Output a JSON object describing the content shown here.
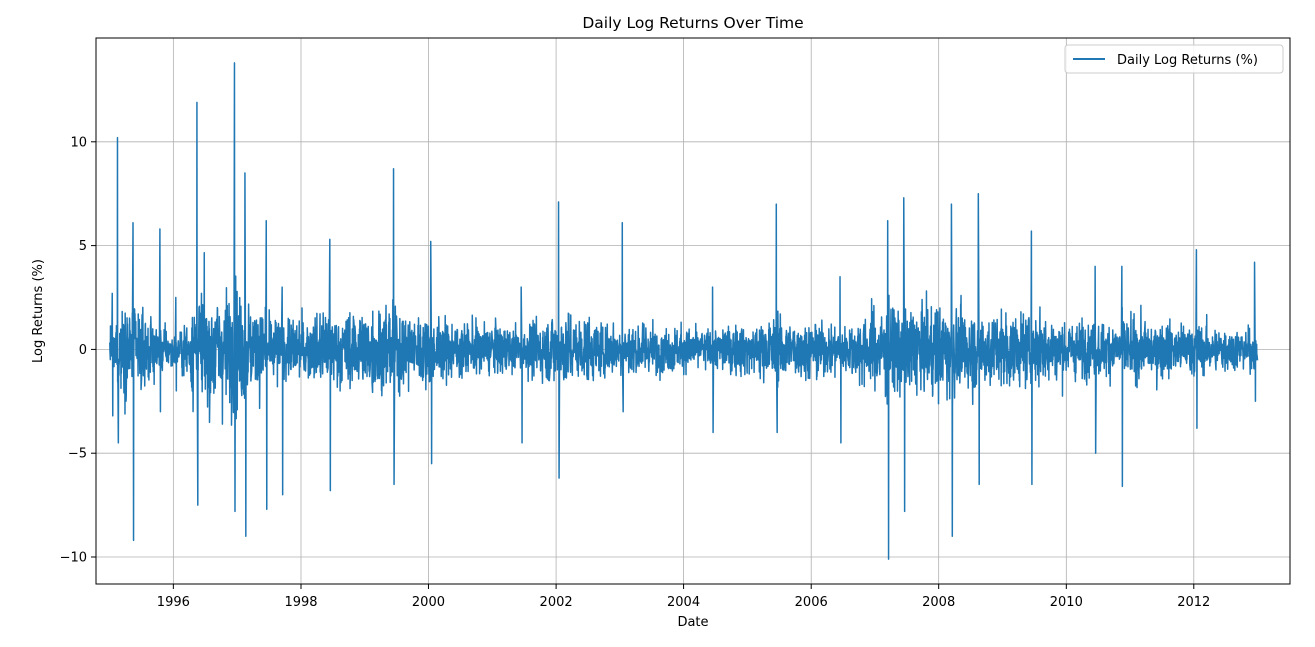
{
  "chart_data": {
    "type": "line",
    "title": "Daily Log Returns Over Time",
    "xlabel": "Date",
    "ylabel": "Log Returns (%)",
    "xlim": [
      "1994-10-15",
      "2013-07-05"
    ],
    "ylim": [
      -11.3,
      15.0
    ],
    "x_ticks": [
      "1996",
      "1998",
      "2000",
      "2002",
      "2004",
      "2006",
      "2008",
      "2010",
      "2012"
    ],
    "y_ticks": [
      -10,
      -5,
      0,
      5,
      10
    ],
    "grid": true,
    "legend": {
      "placement": "top-right"
    },
    "series": [
      {
        "name": "Daily Log Returns (%)",
        "color": "#1f77b4",
        "x_start": "1995-01-02",
        "x_end": "2012-12-31",
        "approximate_envelope": [
          {
            "date": "1995-01",
            "high": 2.7,
            "low": -3.2
          },
          {
            "date": "1995-02",
            "high": 10.2,
            "low": -4.5
          },
          {
            "date": "1995-05",
            "high": 6.1,
            "low": -9.2
          },
          {
            "date": "1995-10",
            "high": 5.8,
            "low": -3.0
          },
          {
            "date": "1996-01",
            "high": 2.5,
            "low": -2.0
          },
          {
            "date": "1996-05",
            "high": 11.9,
            "low": -7.5
          },
          {
            "date": "1996-12",
            "high": 13.8,
            "low": -7.8
          },
          {
            "date": "1997-02",
            "high": 8.5,
            "low": -9.0
          },
          {
            "date": "1997-06",
            "high": 6.2,
            "low": -7.7
          },
          {
            "date": "1997-09",
            "high": 3.0,
            "low": -7.0
          },
          {
            "date": "1998-06",
            "high": 5.3,
            "low": -6.8
          },
          {
            "date": "1999-06",
            "high": 8.7,
            "low": -6.5
          },
          {
            "date": "2000-01",
            "high": 5.2,
            "low": -5.5
          },
          {
            "date": "2001-06",
            "high": 3.0,
            "low": -4.5
          },
          {
            "date": "2002-01",
            "high": 7.1,
            "low": -6.2
          },
          {
            "date": "2003-01",
            "high": 6.1,
            "low": -3.0
          },
          {
            "date": "2004-06",
            "high": 3.0,
            "low": -4.0
          },
          {
            "date": "2005-06",
            "high": 7.0,
            "low": -4.0
          },
          {
            "date": "2006-06",
            "high": 3.5,
            "low": -4.5
          },
          {
            "date": "2007-03",
            "high": 6.2,
            "low": -10.1
          },
          {
            "date": "2007-06",
            "high": 7.3,
            "low": -7.8
          },
          {
            "date": "2008-03",
            "high": 7.0,
            "low": -9.0
          },
          {
            "date": "2008-08",
            "high": 7.5,
            "low": -6.5
          },
          {
            "date": "2009-06",
            "high": 5.7,
            "low": -6.5
          },
          {
            "date": "2010-06",
            "high": 4.0,
            "low": -5.0
          },
          {
            "date": "2010-11",
            "high": 4.0,
            "low": -6.6
          },
          {
            "date": "2012-01",
            "high": 4.8,
            "low": -3.8
          },
          {
            "date": "2012-12",
            "high": 4.2,
            "low": -2.5
          }
        ]
      }
    ]
  }
}
